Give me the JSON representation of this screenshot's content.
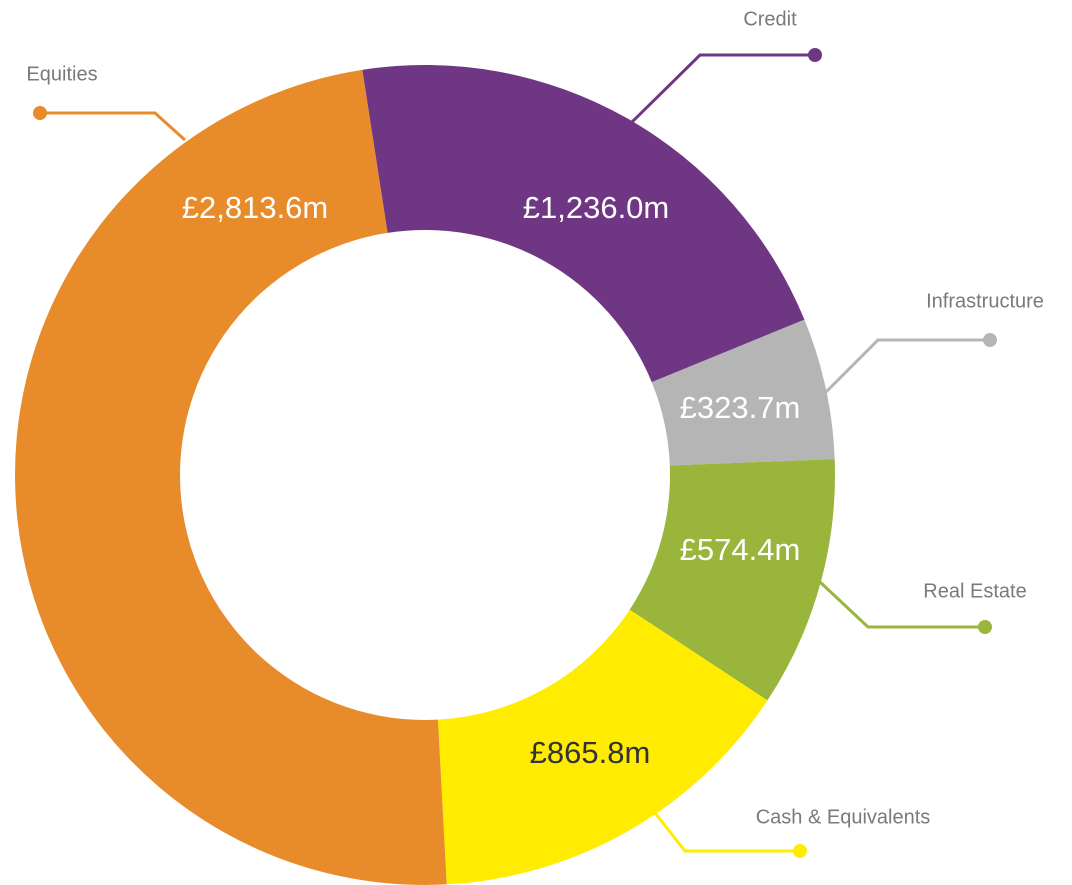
{
  "chart_data": {
    "type": "donut",
    "categories": [
      "Credit",
      "Infrastructure",
      "Real Estate",
      "Cash & Equivalents",
      "Equities"
    ],
    "values": [
      1236.0,
      323.7,
      574.4,
      865.8,
      2813.6
    ],
    "value_labels": [
      "£1,236.0m",
      "£323.7m",
      "£574.4m",
      "£865.8m",
      "£2,813.6m"
    ],
    "colors": [
      "#6f3783",
      "#b5b5b5",
      "#9ab53c",
      "#ffec00",
      "#e88b2b"
    ]
  }
}
